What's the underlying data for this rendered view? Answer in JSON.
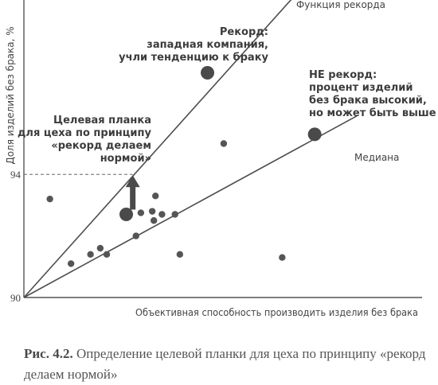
{
  "chart_data": {
    "type": "scatter",
    "xlabel": "Объективная способность производить изделия без брака",
    "ylabel": "Доля изделий без брака, %",
    "ylim": [
      90,
      100
    ],
    "yticks": [
      90,
      94,
      100
    ],
    "grid": false,
    "points": [
      {
        "x": 1.6,
        "y": 93.2
      },
      {
        "x": 2.9,
        "y": 91.1
      },
      {
        "x": 4.1,
        "y": 91.4
      },
      {
        "x": 4.7,
        "y": 91.6
      },
      {
        "x": 5.1,
        "y": 91.4
      },
      {
        "x": 6.9,
        "y": 92.0
      },
      {
        "x": 7.2,
        "y": 92.75
      },
      {
        "x": 7.9,
        "y": 92.8
      },
      {
        "x": 8.0,
        "y": 92.5
      },
      {
        "x": 8.1,
        "y": 93.3
      },
      {
        "x": 8.5,
        "y": 92.7
      },
      {
        "x": 9.3,
        "y": 92.7
      },
      {
        "x": 9.6,
        "y": 91.4
      },
      {
        "x": 12.3,
        "y": 95.0
      },
      {
        "x": 15.9,
        "y": 91.3
      }
    ],
    "highlight_points": [
      {
        "name": "record",
        "x": 11.3,
        "y": 97.3,
        "size": "large"
      },
      {
        "name": "not-record",
        "x": 17.9,
        "y": 95.3,
        "size": "large"
      },
      {
        "name": "target-start",
        "x": 6.3,
        "y": 92.7,
        "size": "large"
      }
    ],
    "lines": [
      {
        "label": "Функция рекорда",
        "from": [
          0,
          90
        ],
        "to": [
          17.0,
          100.0
        ]
      },
      {
        "label": "Медиана",
        "from": [
          0,
          90
        ],
        "to": [
          20.5,
          95.9
        ]
      }
    ],
    "target_level": {
      "y": 94,
      "x": 6.7
    },
    "arrow": {
      "from": [
        6.7,
        92.7
      ],
      "to": [
        6.7,
        94
      ]
    },
    "annotations": [
      {
        "name": "record",
        "lines": [
          "Рекорд:",
          "западная компания,",
          "учли тенденцию к браку"
        ]
      },
      {
        "name": "not-record",
        "lines": [
          "НЕ рекорд:",
          "процент изделий",
          "без брака высокий,",
          "но может быть выше"
        ]
      },
      {
        "name": "target",
        "lines": [
          "Целевая планка",
          "для цеха по принципу",
          "«рекорд делаем",
          "нормой»"
        ]
      }
    ],
    "colors": {
      "ink": "#4d4d4d",
      "axis": "#555555"
    }
  },
  "caption": {
    "fig": "Рис. 4.2.",
    "text": "Определение целевой планки для цеха по принципу «рекорд делаем нормой»"
  }
}
